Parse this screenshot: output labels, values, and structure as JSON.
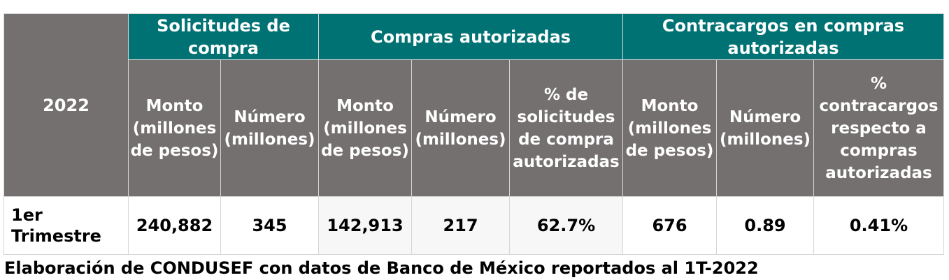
{
  "table": {
    "year": "2022",
    "groups": {
      "solicitudes": "Solicitudes de compra",
      "compras": "Compras autorizadas",
      "contracargos": "Contracargos en compras autorizadas"
    },
    "columns": {
      "sol_monto": "Monto (millones de pesos)",
      "sol_numero": "Número (millones)",
      "comp_monto": "Monto (millones de pesos)",
      "comp_numero": "Número (millones)",
      "comp_pct": "% de solicitudes de compra autorizadas",
      "cc_monto": "Monto (millones de pesos)",
      "cc_numero": "Número (millones)",
      "cc_pct": "% contracargos respecto a compras autorizadas"
    },
    "row": {
      "label": "1er Trimestre",
      "sol_monto": "240,882",
      "sol_numero": "345",
      "comp_monto": "142,913",
      "comp_numero": "217",
      "comp_pct": "62.7%",
      "cc_monto": "676",
      "cc_numero": "0.89",
      "cc_pct": "0.41%"
    }
  },
  "caption": "Elaboración de CONDUSEF con datos de Banco de México reportados al 1T-2022",
  "colors": {
    "header_teal": "#007273",
    "header_grey": "#757070",
    "border": "#d6d6d6"
  }
}
